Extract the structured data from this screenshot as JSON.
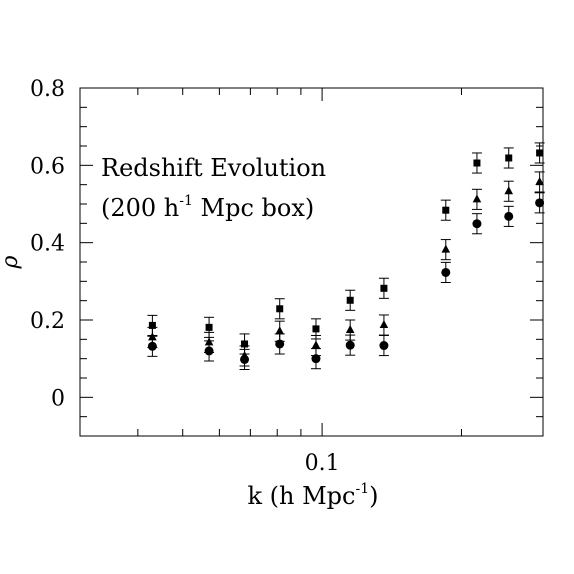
{
  "chart_data": {
    "type": "scatter",
    "title": "",
    "annotation": {
      "line1": "Redshift Evolution",
      "line2_prefix": "(200 h",
      "line2_sup": "-1",
      "line2_suffix": " Mpc box)"
    },
    "xlabel": {
      "prefix": "k (h Mpc",
      "sup": "-1",
      "suffix": ")"
    },
    "ylabel": "ρ",
    "x_scale": "log",
    "xlim": [
      0.03,
      0.3
    ],
    "ylim": [
      -0.1,
      0.8
    ],
    "x_tick_labels": [
      {
        "value": 0.1,
        "label": "0.1"
      }
    ],
    "y_tick_labels": [
      {
        "value": 0,
        "label": "0"
      },
      {
        "value": 0.2,
        "label": "0.2"
      },
      {
        "value": 0.4,
        "label": "0.4"
      },
      {
        "value": 0.6,
        "label": "0.6"
      },
      {
        "value": 0.8,
        "label": "0.8"
      }
    ],
    "x": [
      0.043,
      0.057,
      0.068,
      0.081,
      0.097,
      0.115,
      0.136,
      0.185,
      0.216,
      0.253,
      0.295
    ],
    "series": [
      {
        "marker": "square",
        "values": [
          0.186,
          0.181,
          0.138,
          0.229,
          0.177,
          0.251,
          0.282,
          0.484,
          0.606,
          0.619,
          0.632
        ],
        "err": [
          0.026,
          0.026,
          0.026,
          0.026,
          0.026,
          0.026,
          0.026,
          0.026,
          0.026,
          0.026,
          0.026
        ]
      },
      {
        "marker": "triangle",
        "values": [
          0.155,
          0.142,
          0.107,
          0.171,
          0.134,
          0.174,
          0.187,
          0.382,
          0.512,
          0.533,
          0.557
        ],
        "err": [
          0.026,
          0.026,
          0.026,
          0.026,
          0.026,
          0.026,
          0.026,
          0.026,
          0.026,
          0.026,
          0.026
        ]
      },
      {
        "marker": "circle",
        "values": [
          0.132,
          0.12,
          0.098,
          0.138,
          0.1,
          0.135,
          0.134,
          0.323,
          0.449,
          0.468,
          0.503
        ],
        "err": [
          0.026,
          0.026,
          0.026,
          0.026,
          0.026,
          0.026,
          0.026,
          0.026,
          0.026,
          0.026,
          0.026
        ]
      }
    ],
    "grid": false,
    "legend": "none"
  }
}
